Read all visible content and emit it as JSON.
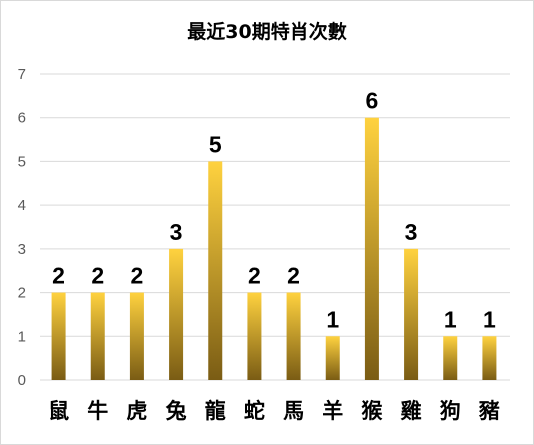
{
  "chart_data": {
    "type": "bar",
    "title": "最近30期特肖次數",
    "xlabel": "",
    "ylabel": "",
    "categories": [
      "鼠",
      "牛",
      "虎",
      "兔",
      "龍",
      "蛇",
      "馬",
      "羊",
      "猴",
      "雞",
      "狗",
      "豬"
    ],
    "values": [
      2,
      2,
      2,
      3,
      5,
      2,
      2,
      1,
      6,
      3,
      1,
      1
    ],
    "ylim": [
      0,
      7
    ],
    "yticks": [
      "0",
      "1",
      "2",
      "3",
      "4",
      "5",
      "6",
      "7"
    ],
    "grid": true,
    "legend": "none",
    "data_labels": true,
    "colors": {
      "bar_top": "#ffd23f",
      "bar_bottom": "#7a5c14",
      "grid": "#d9d9d9"
    }
  }
}
